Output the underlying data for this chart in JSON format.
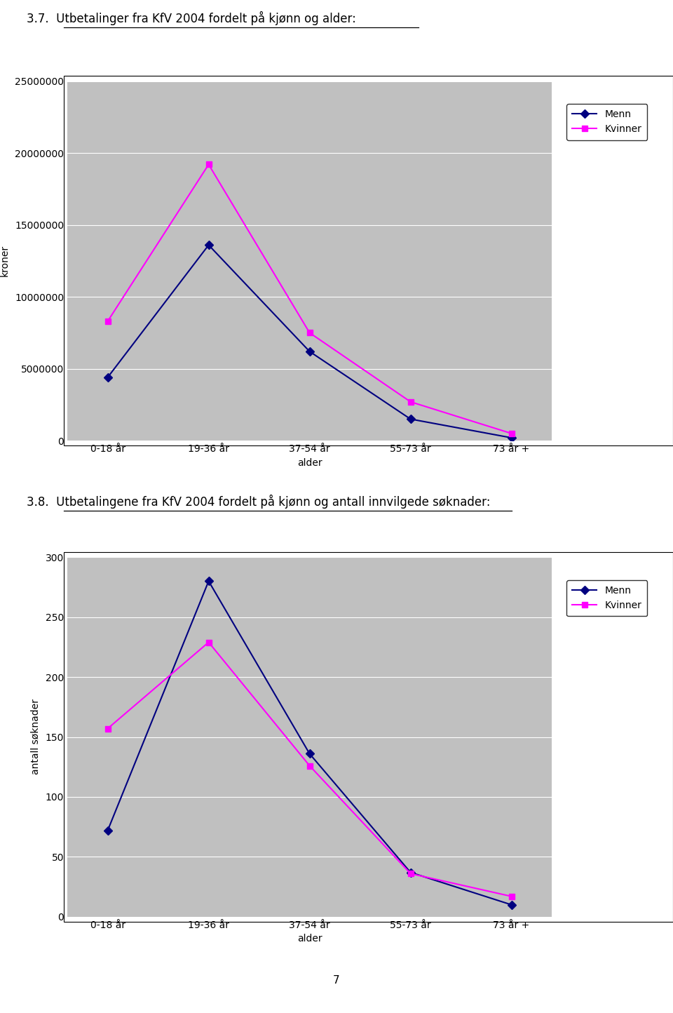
{
  "title1": "3.7.  Utbetalinger fra KfV 2004 fordelt på kjønn og alder:",
  "title2": "3.8.  Utbetalingene fra KfV 2004 fordelt på kjønn og antall innvilgede søknader:",
  "categories": [
    "0-18 år",
    "19-36 år",
    "37-54 år",
    "55-73 år",
    "73 år +"
  ],
  "chart1": {
    "menn": [
      4400000,
      13600000,
      6200000,
      1500000,
      200000
    ],
    "kvinner": [
      8300000,
      19200000,
      7500000,
      2700000,
      500000
    ],
    "ylabel": "kroner",
    "xlabel": "alder",
    "ylim": [
      0,
      25000000
    ],
    "yticks": [
      0,
      5000000,
      10000000,
      15000000,
      20000000,
      25000000
    ]
  },
  "chart2": {
    "menn": [
      72,
      280,
      136,
      37,
      10
    ],
    "kvinner": [
      157,
      229,
      126,
      36,
      17
    ],
    "ylabel": "antall søknader",
    "xlabel": "alder",
    "ylim": [
      0,
      300
    ],
    "yticks": [
      0,
      50,
      100,
      150,
      200,
      250,
      300
    ]
  },
  "menn_color": "#000080",
  "kvinner_color": "#FF00FF",
  "bg_color": "#C0C0C0",
  "legend_menn": "Menn",
  "legend_kvinner": "Kvinner",
  "page_number": "7",
  "fig_width": 9.6,
  "fig_height": 14.44
}
